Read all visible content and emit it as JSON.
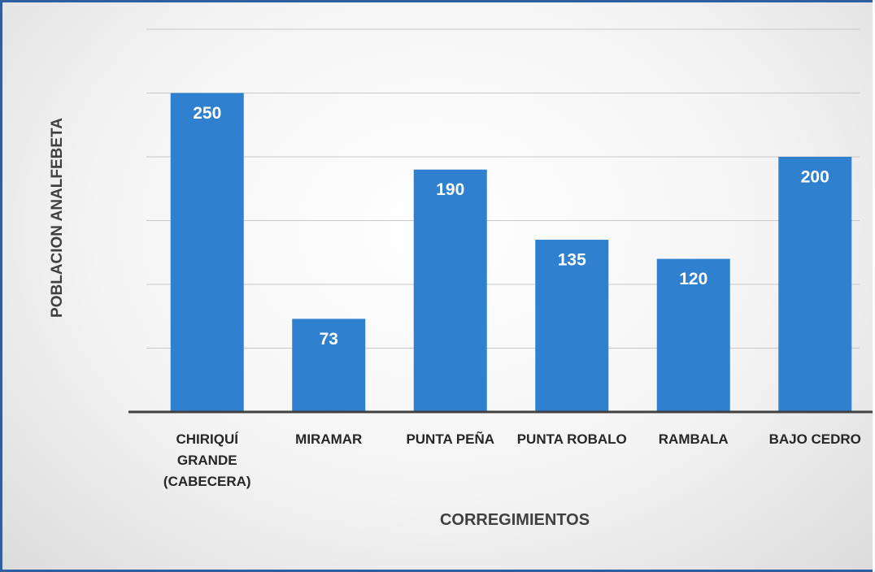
{
  "chart_data": {
    "type": "bar",
    "categories": [
      "CHIRIQUÍ GRANDE (CABECERA)",
      "MIRAMAR",
      "PUNTA PEÑA",
      "PUNTA ROBALO",
      "RAMBALA",
      "BAJO CEDRO"
    ],
    "values": [
      250,
      73,
      190,
      135,
      120,
      200
    ],
    "color": "#2f80cf",
    "xlabel": "CORREGIMIENTOS",
    "ylabel": "POBLACION ANALFEBETA",
    "ylim": [
      0,
      300
    ],
    "yticks": [
      0,
      50,
      100,
      150,
      200,
      250,
      300
    ],
    "grid": true
  }
}
